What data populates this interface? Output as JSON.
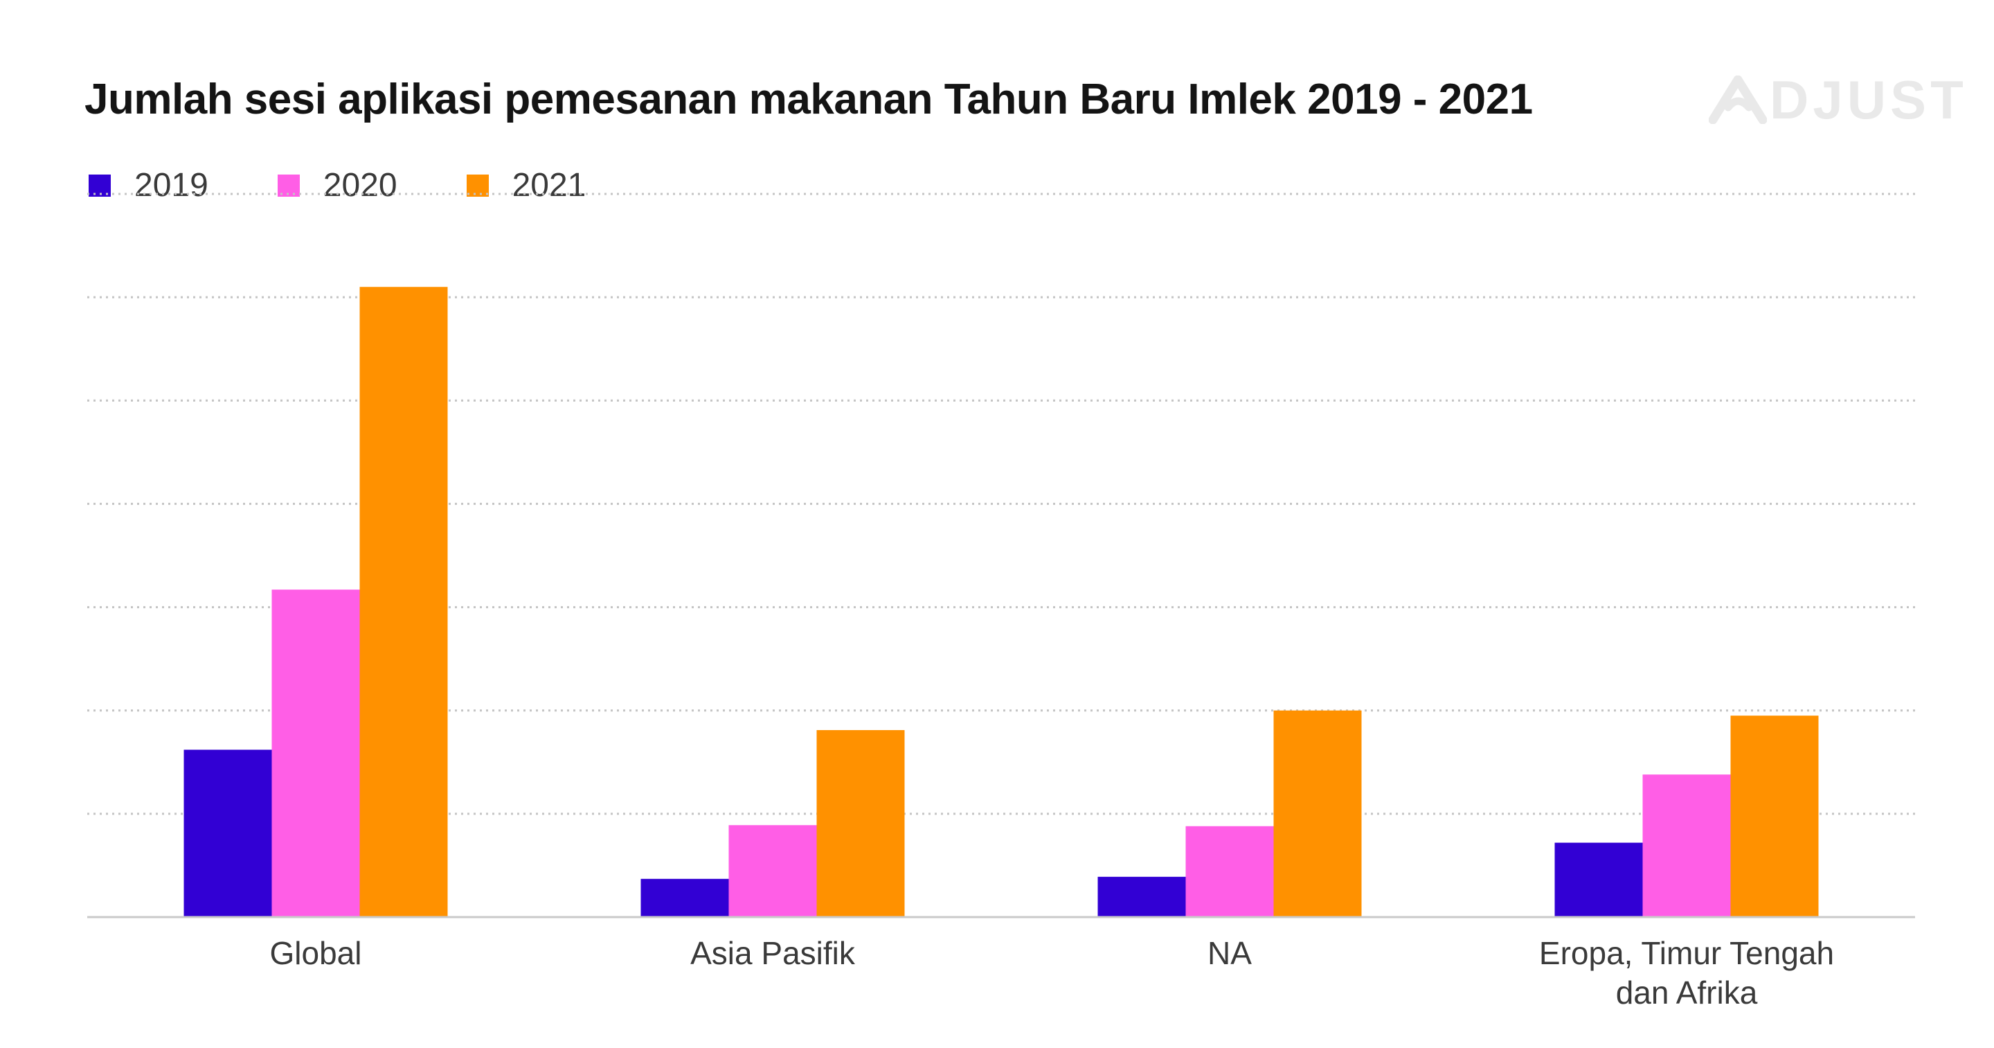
{
  "chart_data": {
    "type": "bar",
    "title": "Jumlah sesi aplikasi pemesanan makanan Tahun Baru Imlek 2019 - 2021",
    "xlabel": "",
    "ylabel": "",
    "categories": [
      [
        "Global"
      ],
      [
        "Asia Pasifik"
      ],
      [
        "NA"
      ],
      [
        "Eropa, Timur Tengah",
        "dan Afrika"
      ]
    ],
    "series": [
      {
        "name": "2019",
        "color": "#3200d4",
        "values": [
          1.62,
          0.37,
          0.39,
          0.72
        ]
      },
      {
        "name": "2020",
        "color": "#ff5ee6",
        "values": [
          3.17,
          0.89,
          0.88,
          1.38
        ]
      },
      {
        "name": "2021",
        "color": "#ff9100",
        "values": [
          6.1,
          1.81,
          2.0,
          1.95
        ]
      }
    ],
    "ylim": [
      0,
      7
    ],
    "y_tick_labels_shown": false,
    "grid": true,
    "legend": "top-left"
  },
  "logo": {
    "text": "DJUST",
    "icon": "adjust-a-logo-icon"
  }
}
